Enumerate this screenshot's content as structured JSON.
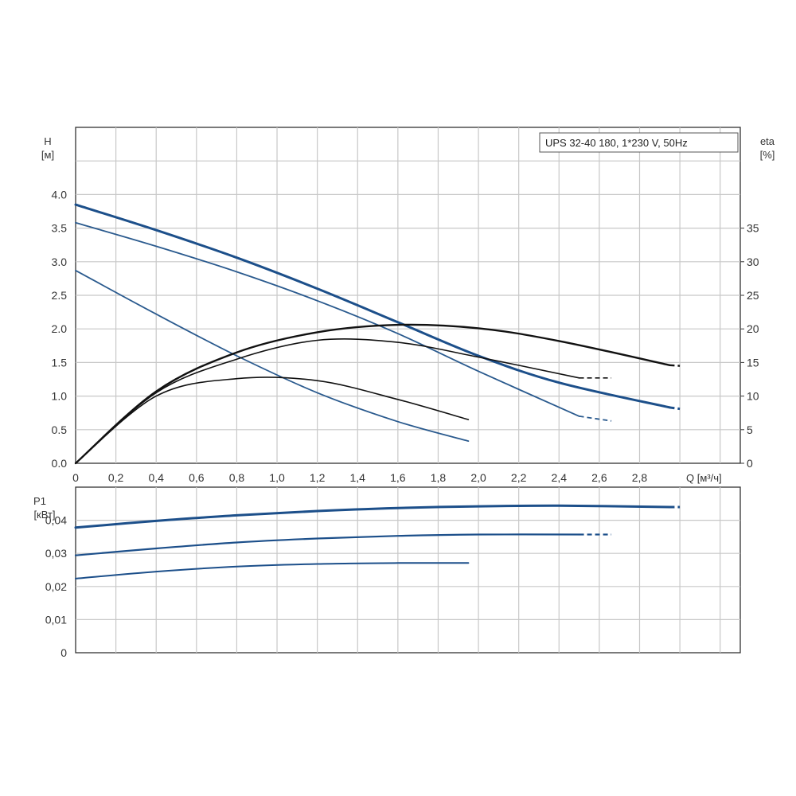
{
  "chart_data": [
    {
      "type": "line",
      "legend": "UPS 32-40 180, 1*230 V, 50Hz",
      "legend_position": "top-right",
      "grid": true,
      "x_label": "Q [м³/ч]",
      "x_ticks": [
        "0",
        "0,2",
        "0,4",
        "0,6",
        "0,8",
        "1,0",
        "1,2",
        "1,4",
        "1,6",
        "1,8",
        "2,0",
        "2,2",
        "2,4",
        "2,6",
        "2,8"
      ],
      "xlim": [
        0,
        3.3
      ],
      "y_left": {
        "label_line1": "H",
        "label_line2": "[м]",
        "lim": [
          0,
          5.0
        ],
        "ticks": [
          "0.0",
          "0.5",
          "1.0",
          "1.5",
          "2.0",
          "2.5",
          "3.0",
          "3.5",
          "4.0"
        ]
      },
      "y_right": {
        "label_line1": "eta",
        "label_line2": "[%]",
        "lim": [
          0,
          50
        ],
        "ticks": [
          "0",
          "5",
          "10",
          "15",
          "20",
          "25",
          "30",
          "35"
        ]
      },
      "series": [
        {
          "kind": "head",
          "axis": "left",
          "color": "#1c4f8a",
          "width": 3.0,
          "x": [
            0,
            0.4,
            0.8,
            1.2,
            1.6,
            2.0,
            2.4,
            2.95
          ],
          "y": [
            3.85,
            3.47,
            3.06,
            2.6,
            2.1,
            1.6,
            1.2,
            0.83
          ],
          "ext_x": [
            2.95,
            3.0
          ],
          "ext_y": [
            0.83,
            0.81
          ]
        },
        {
          "kind": "head",
          "axis": "left",
          "color": "#2a5a8e",
          "width": 1.8,
          "x": [
            0,
            0.4,
            0.8,
            1.2,
            1.6,
            2.0,
            2.5
          ],
          "y": [
            3.58,
            3.23,
            2.85,
            2.42,
            1.93,
            1.37,
            0.7
          ],
          "ext_x": [
            2.5,
            2.66
          ],
          "ext_y": [
            0.7,
            0.63
          ]
        },
        {
          "kind": "head",
          "axis": "left",
          "color": "#2a5a8e",
          "width": 1.8,
          "x": [
            0,
            0.4,
            0.8,
            1.2,
            1.6,
            1.95
          ],
          "y": [
            2.87,
            2.22,
            1.6,
            1.05,
            0.62,
            0.33
          ]
        },
        {
          "kind": "eta",
          "axis": "right",
          "color": "#111111",
          "width": 2.4,
          "x": [
            0,
            0.4,
            0.8,
            1.2,
            1.6,
            2.0,
            2.4,
            2.95
          ],
          "y": [
            0,
            10.7,
            16.5,
            19.5,
            20.6,
            20.1,
            18.2,
            14.6
          ],
          "ext_x": [
            2.95,
            3.0
          ],
          "ext_y": [
            14.6,
            14.5
          ]
        },
        {
          "kind": "eta",
          "axis": "right",
          "color": "#111111",
          "width": 1.6,
          "x": [
            0,
            0.4,
            0.8,
            1.2,
            1.6,
            2.0,
            2.5
          ],
          "y": [
            0,
            10.5,
            15.5,
            18.3,
            18.0,
            15.8,
            12.7
          ],
          "ext_x": [
            2.5,
            2.66
          ],
          "ext_y": [
            12.7,
            12.7
          ]
        },
        {
          "kind": "eta",
          "axis": "right",
          "color": "#111111",
          "width": 1.6,
          "x": [
            0,
            0.4,
            0.8,
            1.2,
            1.6,
            1.95
          ],
          "y": [
            0,
            10.0,
            12.6,
            12.3,
            9.5,
            6.5
          ]
        }
      ]
    },
    {
      "type": "line",
      "grid": true,
      "xlim": [
        0,
        3.3
      ],
      "y_left": {
        "label_line1": "P1",
        "label_line2": "[кВт]",
        "lim": [
          0,
          0.05
        ],
        "ticks": [
          "0",
          "0,01",
          "0,02",
          "0,03",
          "0,04"
        ]
      },
      "series": [
        {
          "color": "#1c4f8a",
          "width": 3.0,
          "x": [
            0,
            0.4,
            0.8,
            1.2,
            1.6,
            2.0,
            2.4,
            2.95
          ],
          "y": [
            0.0378,
            0.0398,
            0.0415,
            0.0428,
            0.0437,
            0.0442,
            0.0444,
            0.044
          ],
          "ext_x": [
            2.95,
            3.0
          ],
          "ext_y": [
            0.044,
            0.044
          ]
        },
        {
          "color": "#1c4f8a",
          "width": 2.2,
          "x": [
            0,
            0.4,
            0.8,
            1.2,
            1.6,
            2.0,
            2.5
          ],
          "y": [
            0.0294,
            0.0315,
            0.0333,
            0.0345,
            0.0353,
            0.0357,
            0.0357
          ],
          "ext_x": [
            2.5,
            2.66
          ],
          "ext_y": [
            0.0357,
            0.0357
          ]
        },
        {
          "color": "#1c4f8a",
          "width": 2.0,
          "x": [
            0,
            0.4,
            0.8,
            1.2,
            1.6,
            1.95
          ],
          "y": [
            0.0224,
            0.0245,
            0.026,
            0.0268,
            0.0271,
            0.0271
          ]
        }
      ]
    }
  ]
}
